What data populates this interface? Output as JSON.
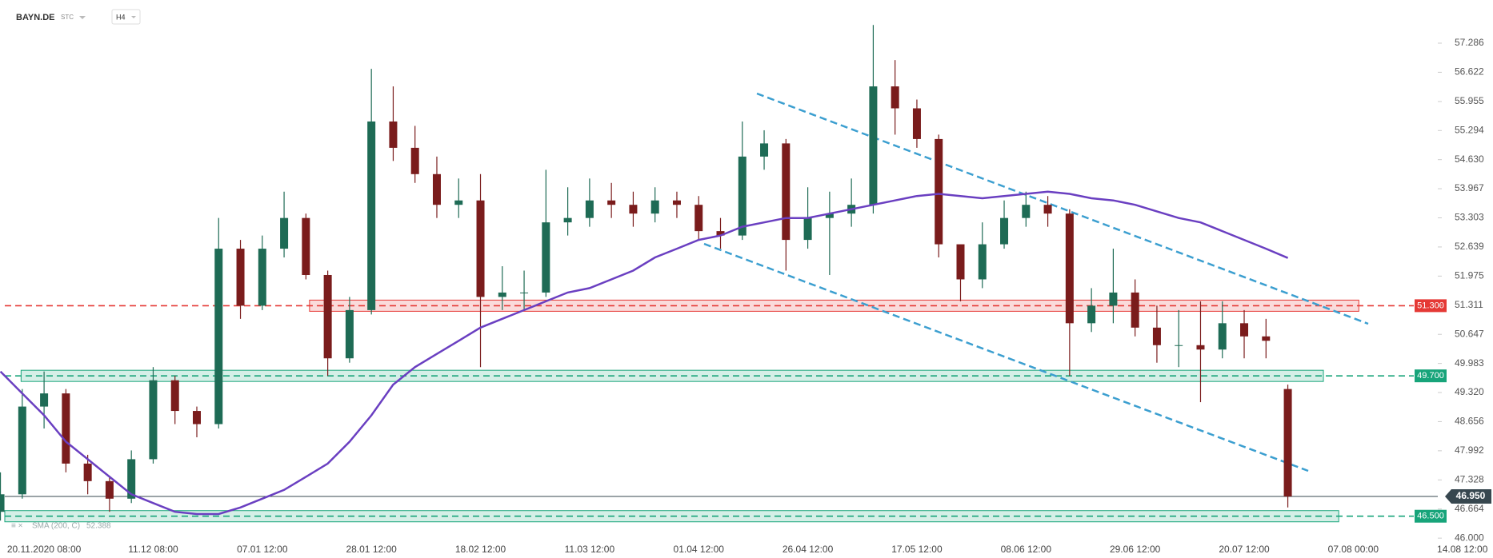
{
  "chart_data": {
    "type": "candlestick",
    "symbol": "BAYN.DE",
    "source": "STC",
    "interval": "H4",
    "up_color": "#1e6b55",
    "down_color": "#7a1c1c",
    "categories": [
      null,
      null,
      "20.11.2020 08:00",
      null,
      null,
      null,
      null,
      "11.12 08:00",
      null,
      null,
      null,
      null,
      "07.01 12:00",
      null,
      null,
      null,
      null,
      "28.01 12:00",
      null,
      null,
      null,
      null,
      "18.02 12:00",
      null,
      null,
      null,
      null,
      "11.03 12:00",
      null,
      null,
      null,
      null,
      "01.04 12:00",
      null,
      null,
      null,
      null,
      "26.04 12:00",
      null,
      null,
      null,
      null,
      "17.05 12:00",
      null,
      null,
      null,
      null,
      "08.06 12:00",
      null,
      null,
      null,
      null,
      "29.06 12:00",
      null,
      null,
      null,
      null,
      "20.07 12:00",
      null,
      null,
      null,
      null,
      "07.08 00:00",
      null,
      null,
      null,
      null,
      "14.08 12:00"
    ],
    "open": [
      46.6,
      47.0,
      49.0,
      49.3,
      47.7,
      47.3,
      46.9,
      47.8,
      49.6,
      48.9,
      48.6,
      52.6,
      51.3,
      52.6,
      53.3,
      52.0,
      50.1,
      51.2,
      55.5,
      54.9,
      54.3,
      53.6,
      53.7,
      51.5,
      51.6,
      51.6,
      53.2,
      53.3,
      53.7,
      53.6,
      53.4,
      53.7,
      53.6,
      53.0,
      52.9,
      54.7,
      55.0,
      52.8,
      53.3,
      53.4,
      53.6,
      56.3,
      55.8,
      55.1,
      52.7,
      51.9,
      52.7,
      53.3,
      53.6,
      53.4,
      50.9,
      51.3,
      51.6,
      50.8,
      50.4,
      50.4,
      50.3,
      50.9,
      50.6,
      49.4,
      null,
      null,
      null,
      null,
      null,
      null,
      null,
      null
    ],
    "high": [
      47.5,
      49.4,
      49.8,
      49.4,
      47.9,
      47.4,
      48.0,
      49.9,
      49.7,
      49.0,
      53.3,
      52.8,
      52.9,
      53.9,
      53.4,
      52.1,
      51.5,
      56.7,
      56.3,
      55.4,
      54.7,
      54.2,
      54.3,
      52.2,
      52.1,
      54.4,
      54.0,
      54.2,
      54.1,
      53.9,
      54.0,
      53.9,
      53.8,
      53.3,
      55.5,
      55.3,
      55.1,
      54.0,
      53.9,
      54.2,
      57.7,
      56.9,
      56.0,
      55.2,
      52.6,
      53.2,
      53.7,
      53.9,
      53.8,
      53.5,
      51.7,
      52.6,
      51.9,
      51.3,
      51.2,
      51.4,
      51.4,
      51.2,
      51.0,
      49.5,
      null,
      null,
      null,
      null,
      null,
      null,
      null,
      null
    ],
    "low": [
      46.4,
      46.9,
      48.5,
      47.5,
      47.0,
      46.6,
      46.8,
      47.7,
      48.6,
      48.3,
      48.5,
      51.0,
      51.2,
      52.4,
      51.9,
      49.7,
      50.0,
      51.1,
      54.6,
      54.1,
      53.3,
      53.3,
      49.9,
      51.2,
      51.2,
      51.5,
      52.9,
      53.1,
      53.3,
      53.1,
      53.2,
      53.3,
      52.8,
      52.6,
      52.8,
      54.4,
      52.1,
      52.6,
      52.0,
      53.1,
      53.4,
      55.2,
      54.9,
      52.4,
      51.4,
      51.7,
      52.6,
      53.1,
      53.1,
      49.7,
      50.7,
      50.9,
      50.6,
      50.0,
      49.9,
      49.1,
      50.1,
      50.1,
      50.1,
      46.7,
      null,
      null,
      null,
      null,
      null,
      null,
      null,
      null
    ],
    "close": [
      47.0,
      49.0,
      49.3,
      47.7,
      47.3,
      46.9,
      47.8,
      49.6,
      48.9,
      48.6,
      52.6,
      51.3,
      52.6,
      53.3,
      52.0,
      50.1,
      51.2,
      55.5,
      54.9,
      54.3,
      53.6,
      53.7,
      51.5,
      51.6,
      51.6,
      53.2,
      53.3,
      53.7,
      53.6,
      53.4,
      53.7,
      53.6,
      53.0,
      52.9,
      54.7,
      55.0,
      52.8,
      53.3,
      53.4,
      53.6,
      56.3,
      55.8,
      55.1,
      52.7,
      51.9,
      52.7,
      53.3,
      53.6,
      53.4,
      50.9,
      51.3,
      51.6,
      50.8,
      50.4,
      50.4,
      50.3,
      50.9,
      50.6,
      50.5,
      46.95,
      null,
      null,
      null,
      null,
      null,
      null,
      null,
      null
    ],
    "overlays": [
      {
        "name": "SMA (200, C)",
        "last": 52.388,
        "color": "#6a3fc1",
        "values": [
          49.8,
          49.3,
          48.8,
          48.2,
          47.8,
          47.4,
          47.0,
          46.8,
          46.6,
          46.55,
          46.55,
          46.7,
          46.9,
          47.1,
          47.4,
          47.7,
          48.2,
          48.8,
          49.5,
          49.9,
          50.2,
          50.5,
          50.8,
          51.0,
          51.2,
          51.4,
          51.6,
          51.7,
          51.9,
          52.1,
          52.4,
          52.6,
          52.8,
          52.9,
          53.1,
          53.2,
          53.3,
          53.3,
          53.4,
          53.5,
          53.6,
          53.7,
          53.8,
          53.85,
          53.8,
          53.75,
          53.8,
          53.85,
          53.9,
          53.85,
          53.75,
          53.7,
          53.6,
          53.45,
          53.3,
          53.2,
          53.0,
          52.8,
          52.6,
          52.388,
          null,
          null,
          null,
          null,
          null,
          null,
          null,
          null
        ]
      }
    ],
    "levels": [
      {
        "value": 51.3,
        "label": "51.300",
        "color": "#e53935"
      },
      {
        "value": 49.7,
        "label": "49.700",
        "color": "#17a47a"
      },
      {
        "value": 46.5,
        "label": "46.500",
        "color": "#17a47a"
      }
    ],
    "last_price": {
      "value": 46.95,
      "label": "46.950",
      "color": "#37474f"
    },
    "ylim": [
      45.93,
      58.27
    ],
    "yticks": [
      57.286,
      56.622,
      55.955,
      55.294,
      {
        "value": 54.63,
        "label": "54.630"
      },
      53.967,
      53.303,
      52.639,
      51.975,
      51.311,
      50.647,
      49.983,
      {
        "value": 49.32,
        "label": "49.320"
      },
      48.656,
      47.992,
      47.328,
      46.664,
      {
        "value": 46,
        "label": "46.000"
      }
    ],
    "grid": false
  }
}
